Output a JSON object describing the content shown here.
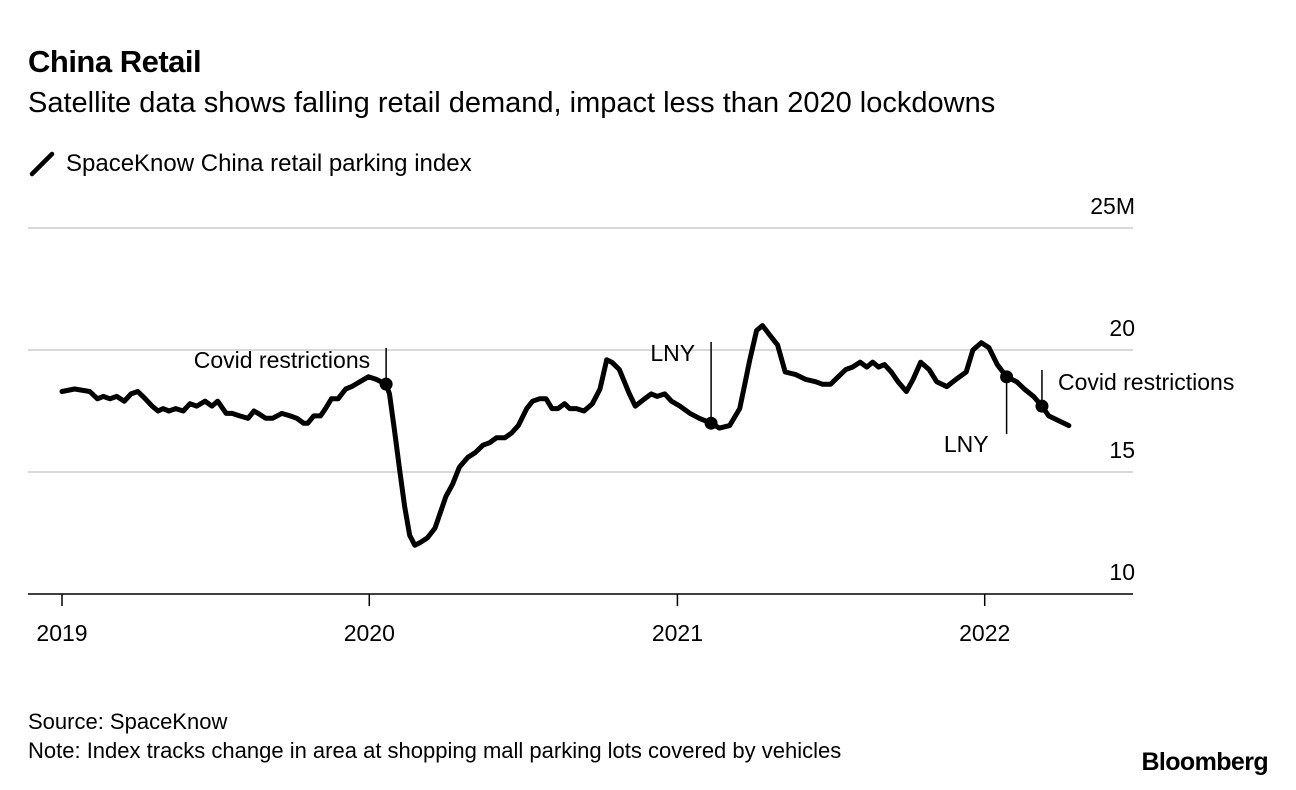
{
  "header": {
    "title": "China Retail",
    "subtitle": "Satellite data shows falling retail demand, impact less than 2020 lockdowns"
  },
  "legend": {
    "label": "SpaceKnow China retail parking index",
    "icon": "line-swatch-icon"
  },
  "footer": {
    "source": "Source: SpaceKnow",
    "note": "Note: Index tracks change in area at shopping mall parking lots covered by vehicles",
    "logo": "Bloomberg"
  },
  "chart_data": {
    "type": "line",
    "title": "China Retail",
    "subtitle": "Satellite data shows falling retail demand, impact less than 2020 lockdowns",
    "ylim": [
      10,
      25
    ],
    "yticks": [
      {
        "value": 25,
        "label": "25M"
      },
      {
        "value": 20,
        "label": "20"
      },
      {
        "value": 15,
        "label": "15"
      },
      {
        "value": 10,
        "label": "10"
      }
    ],
    "xticks": [
      {
        "date": "2019-01-01",
        "label": "2019"
      },
      {
        "date": "2020-01-01",
        "label": "2020"
      },
      {
        "date": "2021-01-01",
        "label": "2021"
      },
      {
        "date": "2022-01-01",
        "label": "2022"
      }
    ],
    "xlim": [
      "2018-11-25",
      "2022-06-10"
    ],
    "grid": "horizontal",
    "colors": {
      "line": "#000000",
      "grid": "#d9d9d9",
      "axis": "#000000"
    },
    "series": [
      {
        "name": "SpaceKnow China retail parking index",
        "points": [
          [
            "2019-01-01",
            18.3
          ],
          [
            "2019-01-16",
            18.4
          ],
          [
            "2019-02-03",
            18.3
          ],
          [
            "2019-02-12",
            18.0
          ],
          [
            "2019-02-19",
            18.1
          ],
          [
            "2019-02-27",
            18.0
          ],
          [
            "2019-03-07",
            18.1
          ],
          [
            "2019-03-16",
            17.9
          ],
          [
            "2019-03-24",
            18.2
          ],
          [
            "2019-04-01",
            18.3
          ],
          [
            "2019-04-10",
            18.0
          ],
          [
            "2019-04-18",
            17.7
          ],
          [
            "2019-04-25",
            17.5
          ],
          [
            "2019-05-01",
            17.6
          ],
          [
            "2019-05-08",
            17.5
          ],
          [
            "2019-05-16",
            17.6
          ],
          [
            "2019-05-25",
            17.5
          ],
          [
            "2019-06-02",
            17.8
          ],
          [
            "2019-06-10",
            17.7
          ],
          [
            "2019-06-20",
            17.9
          ],
          [
            "2019-06-28",
            17.7
          ],
          [
            "2019-07-05",
            17.9
          ],
          [
            "2019-07-15",
            17.4
          ],
          [
            "2019-07-22",
            17.4
          ],
          [
            "2019-07-31",
            17.3
          ],
          [
            "2019-08-10",
            17.2
          ],
          [
            "2019-08-17",
            17.5
          ],
          [
            "2019-08-22",
            17.4
          ],
          [
            "2019-08-31",
            17.2
          ],
          [
            "2019-09-08",
            17.2
          ],
          [
            "2019-09-19",
            17.4
          ],
          [
            "2019-09-29",
            17.3
          ],
          [
            "2019-10-07",
            17.2
          ],
          [
            "2019-10-15",
            17.0
          ],
          [
            "2019-10-20",
            17.0
          ],
          [
            "2019-10-27",
            17.3
          ],
          [
            "2019-11-04",
            17.3
          ],
          [
            "2019-11-10",
            17.6
          ],
          [
            "2019-11-17",
            18.0
          ],
          [
            "2019-11-25",
            18.0
          ],
          [
            "2019-12-04",
            18.4
          ],
          [
            "2019-12-11",
            18.5
          ],
          [
            "2019-12-21",
            18.7
          ],
          [
            "2019-12-31",
            18.9
          ],
          [
            "2020-01-09",
            18.8
          ],
          [
            "2020-01-21",
            18.6
          ],
          [
            "2020-01-25",
            18.2
          ],
          [
            "2020-01-31",
            16.7
          ],
          [
            "2020-02-06",
            15.1
          ],
          [
            "2020-02-12",
            13.6
          ],
          [
            "2020-02-18",
            12.4
          ],
          [
            "2020-02-24",
            12.0
          ],
          [
            "2020-03-01",
            12.1
          ],
          [
            "2020-03-10",
            12.3
          ],
          [
            "2020-03-19",
            12.7
          ],
          [
            "2020-03-26",
            13.4
          ],
          [
            "2020-04-01",
            14.0
          ],
          [
            "2020-04-09",
            14.5
          ],
          [
            "2020-04-17",
            15.2
          ],
          [
            "2020-04-27",
            15.6
          ],
          [
            "2020-05-06",
            15.8
          ],
          [
            "2020-05-15",
            16.1
          ],
          [
            "2020-05-23",
            16.2
          ],
          [
            "2020-05-31",
            16.4
          ],
          [
            "2020-06-10",
            16.4
          ],
          [
            "2020-06-18",
            16.6
          ],
          [
            "2020-06-26",
            16.9
          ],
          [
            "2020-07-06",
            17.6
          ],
          [
            "2020-07-13",
            17.9
          ],
          [
            "2020-07-21",
            18.0
          ],
          [
            "2020-07-29",
            18.0
          ],
          [
            "2020-08-05",
            17.6
          ],
          [
            "2020-08-12",
            17.6
          ],
          [
            "2020-08-20",
            17.8
          ],
          [
            "2020-08-26",
            17.6
          ],
          [
            "2020-09-03",
            17.6
          ],
          [
            "2020-09-12",
            17.5
          ],
          [
            "2020-09-22",
            17.8
          ],
          [
            "2020-10-01",
            18.4
          ],
          [
            "2020-10-09",
            19.6
          ],
          [
            "2020-10-15",
            19.5
          ],
          [
            "2020-10-24",
            19.2
          ],
          [
            "2020-11-05",
            18.2
          ],
          [
            "2020-11-12",
            17.7
          ],
          [
            "2020-11-23",
            18.0
          ],
          [
            "2020-12-01",
            18.2
          ],
          [
            "2020-12-08",
            18.1
          ],
          [
            "2020-12-17",
            18.2
          ],
          [
            "2020-12-25",
            17.9
          ],
          [
            "2021-01-04",
            17.7
          ],
          [
            "2021-01-16",
            17.4
          ],
          [
            "2021-01-27",
            17.2
          ],
          [
            "2021-02-10",
            17.0
          ],
          [
            "2021-02-20",
            16.8
          ],
          [
            "2021-03-04",
            16.9
          ],
          [
            "2021-03-16",
            17.6
          ],
          [
            "2021-03-22",
            18.6
          ],
          [
            "2021-03-28",
            19.6
          ],
          [
            "2021-04-05",
            20.8
          ],
          [
            "2021-04-12",
            21.0
          ],
          [
            "2021-04-21",
            20.6
          ],
          [
            "2021-04-30",
            20.2
          ],
          [
            "2021-05-09",
            19.1
          ],
          [
            "2021-05-21",
            19.0
          ],
          [
            "2021-06-02",
            18.8
          ],
          [
            "2021-06-14",
            18.7
          ],
          [
            "2021-06-22",
            18.6
          ],
          [
            "2021-07-02",
            18.6
          ],
          [
            "2021-07-11",
            18.9
          ],
          [
            "2021-07-20",
            19.2
          ],
          [
            "2021-07-28",
            19.3
          ],
          [
            "2021-08-06",
            19.5
          ],
          [
            "2021-08-14",
            19.3
          ],
          [
            "2021-08-21",
            19.5
          ],
          [
            "2021-08-28",
            19.3
          ],
          [
            "2021-09-04",
            19.4
          ],
          [
            "2021-09-12",
            19.1
          ],
          [
            "2021-09-20",
            18.7
          ],
          [
            "2021-09-30",
            18.3
          ],
          [
            "2021-10-08",
            18.8
          ],
          [
            "2021-10-17",
            19.5
          ],
          [
            "2021-10-27",
            19.2
          ],
          [
            "2021-11-05",
            18.7
          ],
          [
            "2021-11-17",
            18.5
          ],
          [
            "2021-11-28",
            18.8
          ],
          [
            "2021-12-10",
            19.1
          ],
          [
            "2021-12-18",
            20.0
          ],
          [
            "2021-12-28",
            20.3
          ],
          [
            "2022-01-06",
            20.1
          ],
          [
            "2022-01-16",
            19.4
          ],
          [
            "2022-01-27",
            18.9
          ],
          [
            "2022-02-08",
            18.7
          ],
          [
            "2022-02-17",
            18.4
          ],
          [
            "2022-02-28",
            18.1
          ],
          [
            "2022-03-10",
            17.7
          ],
          [
            "2022-03-18",
            17.3
          ],
          [
            "2022-03-30",
            17.1
          ],
          [
            "2022-04-11",
            16.9
          ]
        ]
      }
    ],
    "annotations": [
      {
        "label": "Covid restrictions",
        "date": "2020-01-21",
        "value": 18.6,
        "position": "above-left"
      },
      {
        "label": "LNY",
        "date": "2021-02-10",
        "value": 17.0,
        "position": "above-left"
      },
      {
        "label": "LNY",
        "date": "2022-01-27",
        "value": 18.9,
        "position": "below-left"
      },
      {
        "label": "Covid restrictions",
        "date": "2022-03-10",
        "value": 17.7,
        "position": "above-right"
      }
    ]
  }
}
